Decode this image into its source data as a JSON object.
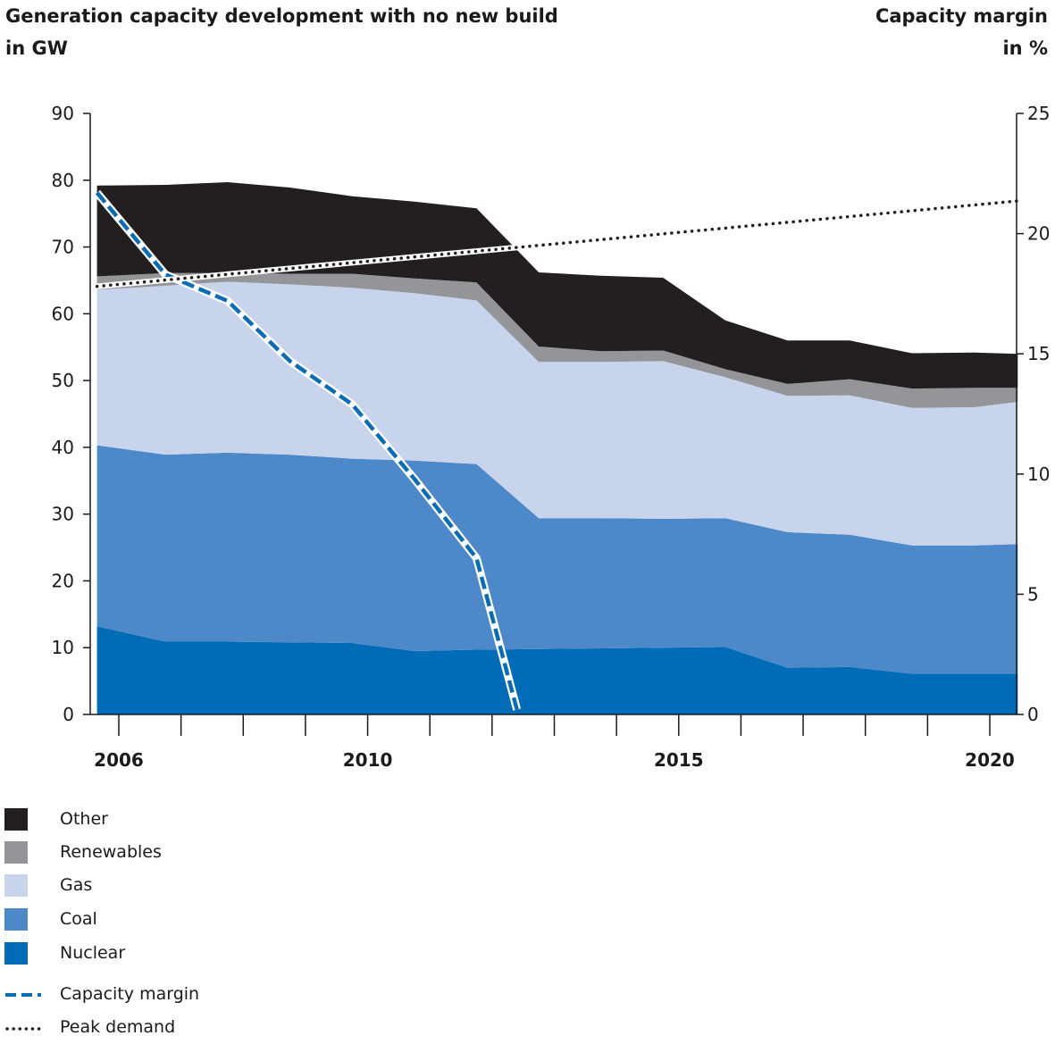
{
  "titles": {
    "left_line1": "Generation capacity development with no new build",
    "left_line2": "in GW",
    "right_line1": "Capacity margin",
    "right_line2": "in %"
  },
  "colors": {
    "nuclear": "#006bb6",
    "coal": "#4d88c8",
    "gas": "#c8d4ec",
    "renewables": "#939598",
    "other": "#231f20",
    "capacity_margin": "#0a6cb5",
    "peak_demand": "#231f20"
  },
  "chart_data": {
    "type": "area",
    "stacked": true,
    "x": [
      2005.65,
      2006.75,
      2007.75,
      2008.75,
      2009.75,
      2010.75,
      2011.75,
      2012.75,
      2013.75,
      2014.75,
      2015.75,
      2016.75,
      2017.75,
      2018.75,
      2019.75,
      2020.45
    ],
    "xlim": [
      2005.5,
      2020.45
    ],
    "x_ticks": [
      2006,
      2007,
      2008,
      2009,
      2010,
      2011,
      2012,
      2013,
      2014,
      2015,
      2016,
      2017,
      2018,
      2019,
      2020
    ],
    "x_tick_labels": [
      "2006",
      "2010",
      "2015",
      "2020"
    ],
    "ylim": [
      0,
      90
    ],
    "y_ticks": [
      0,
      10,
      20,
      30,
      40,
      50,
      60,
      70,
      80,
      90
    ],
    "y2lim": [
      0,
      25
    ],
    "y2_ticks": [
      0,
      5,
      10,
      15,
      20,
      25
    ],
    "series": [
      {
        "name": "Nuclear",
        "key": "nuclear",
        "values": [
          13.2,
          10.9,
          10.9,
          10.8,
          10.7,
          9.5,
          9.7,
          9.8,
          9.9,
          10.0,
          10.1,
          7.0,
          7.1,
          6.1,
          6.1,
          6.1
        ]
      },
      {
        "name": "Coal",
        "key": "coal",
        "values": [
          27.1,
          28.0,
          28.3,
          28.1,
          27.6,
          28.5,
          27.8,
          19.6,
          19.5,
          19.3,
          19.3,
          20.3,
          19.8,
          19.2,
          19.2,
          19.4
        ]
      },
      {
        "name": "Gas",
        "key": "gas",
        "values": [
          23.3,
          25.3,
          25.6,
          25.5,
          25.6,
          25.1,
          24.5,
          23.4,
          23.4,
          23.6,
          21.1,
          20.4,
          20.9,
          20.6,
          20.7,
          21.3
        ]
      },
      {
        "name": "Renewables",
        "key": "renewables",
        "values": [
          2.0,
          1.9,
          1.3,
          1.6,
          2.1,
          2.2,
          2.7,
          2.3,
          1.6,
          1.6,
          1.2,
          1.8,
          2.4,
          2.9,
          2.9,
          2.1
        ]
      },
      {
        "name": "Other",
        "key": "other",
        "values": [
          13.6,
          13.2,
          13.6,
          12.9,
          11.6,
          11.5,
          11.1,
          11.1,
          11.3,
          10.9,
          7.3,
          6.5,
          5.8,
          5.3,
          5.3,
          5.1
        ]
      }
    ],
    "lines": [
      {
        "name": "Capacity margin",
        "key": "capacity_margin",
        "axis": "right",
        "style": "dashed",
        "x": [
          2005.65,
          2006.75,
          2007.75,
          2008.75,
          2009.75,
          2010.75,
          2011.75,
          2012.4
        ],
        "values": [
          21.7,
          18.3,
          17.2,
          14.7,
          12.9,
          9.8,
          6.5,
          0.2
        ]
      },
      {
        "name": "Peak demand",
        "key": "peak_demand",
        "axis": "left",
        "style": "dotted",
        "x": [
          2005.65,
          2020.45
        ],
        "values": [
          64.1,
          76.9
        ]
      }
    ]
  },
  "legend": [
    {
      "label": "Other",
      "key": "other",
      "kind": "swatch"
    },
    {
      "label": "Renewables",
      "key": "renewables",
      "kind": "swatch"
    },
    {
      "label": "Gas",
      "key": "gas",
      "kind": "swatch"
    },
    {
      "label": "Coal",
      "key": "coal",
      "kind": "swatch"
    },
    {
      "label": "Nuclear",
      "key": "nuclear",
      "kind": "swatch"
    },
    {
      "label": "Capacity margin",
      "key": "capacity_margin",
      "kind": "dashed"
    },
    {
      "label": "Peak demand",
      "key": "peak_demand",
      "kind": "dotted"
    }
  ]
}
